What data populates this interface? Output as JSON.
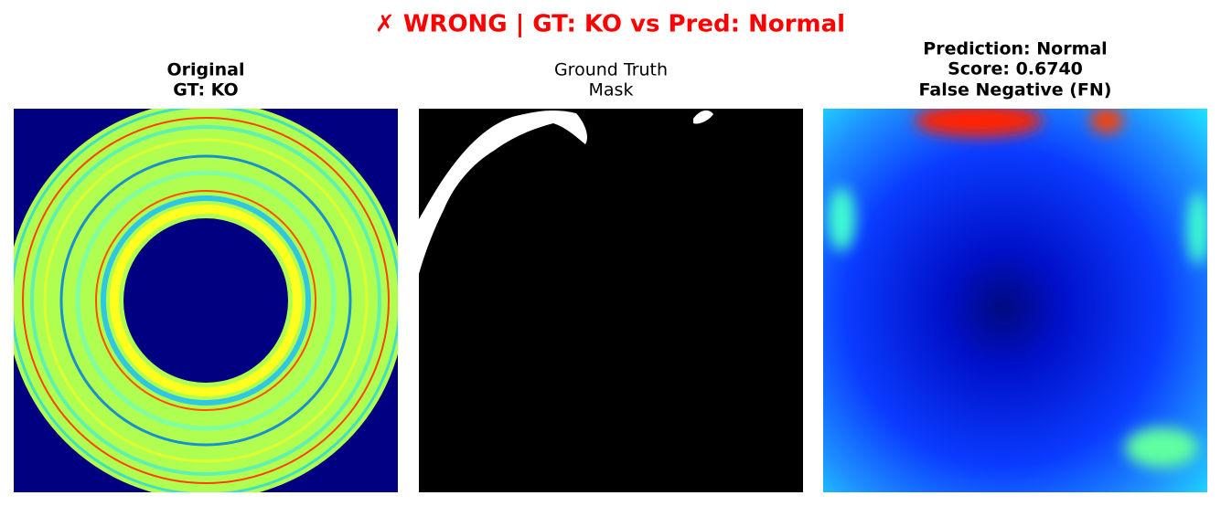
{
  "title": "✗ WRONG | GT: KO vs Pred: Normal",
  "panels": [
    {
      "title_lines": [
        "Original",
        "GT: KO"
      ]
    },
    {
      "title_lines": [
        "Ground Truth",
        "Mask"
      ]
    },
    {
      "title_lines": [
        "Prediction: Normal",
        "Score: 0.6740",
        "False Negative (FN)"
      ]
    }
  ]
}
